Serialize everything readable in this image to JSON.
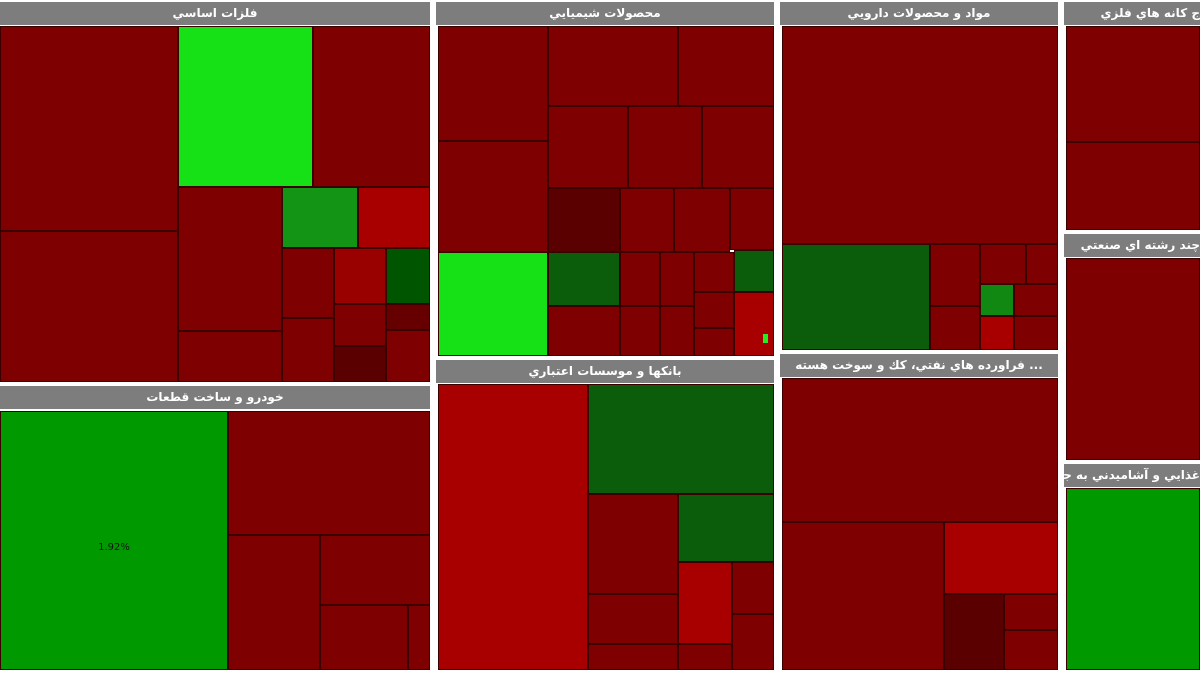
{
  "panels": [
    {
      "title": "فلزات اساسي"
    },
    {
      "title": "خودرو و ساخت قطعات"
    },
    {
      "title": "محصولات شيميايي"
    },
    {
      "title": "بانكها و موسسات اعتباري"
    },
    {
      "title": "مواد و محصولات دارويي"
    },
    {
      "title": "... فراورده هاي نفتي، كك و سوخت هسته"
    },
    {
      "title": "ج كانه هاي فلزي"
    },
    {
      "title": "چند رشته اي صنعتي"
    },
    {
      "title": "غذايي و آشاميدني به جز"
    }
  ],
  "tiles": [
    {
      "label": "1.92%"
    }
  ]
}
